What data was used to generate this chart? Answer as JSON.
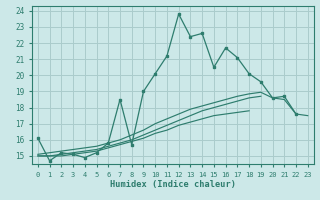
{
  "xlabel": "Humidex (Indice chaleur)",
  "x": [
    0,
    1,
    2,
    3,
    4,
    5,
    6,
    7,
    8,
    9,
    10,
    11,
    12,
    13,
    14,
    15,
    16,
    17,
    18,
    19,
    20,
    21,
    22,
    23
  ],
  "y_main": [
    16.1,
    14.7,
    15.2,
    15.1,
    14.9,
    15.2,
    15.8,
    18.5,
    15.7,
    19.0,
    20.1,
    21.2,
    23.8,
    22.4,
    22.6,
    20.5,
    21.7,
    21.1,
    20.1,
    19.6,
    18.6,
    18.7,
    17.6,
    null
  ],
  "y_line2": [
    15.1,
    15.2,
    15.3,
    15.4,
    15.5,
    15.6,
    15.8,
    16.0,
    16.3,
    16.6,
    17.0,
    17.3,
    17.6,
    17.9,
    18.1,
    18.3,
    18.5,
    18.7,
    18.85,
    18.95,
    18.6,
    18.5,
    17.6,
    17.5
  ],
  "y_line3": [
    15.0,
    15.0,
    15.1,
    15.2,
    15.3,
    15.4,
    15.6,
    15.8,
    16.0,
    16.3,
    16.6,
    16.9,
    17.2,
    17.5,
    17.8,
    18.0,
    18.2,
    18.4,
    18.6,
    18.7,
    null,
    null,
    null,
    null
  ],
  "y_line4": [
    15.0,
    15.0,
    15.0,
    15.1,
    15.2,
    15.3,
    15.5,
    15.7,
    15.9,
    16.1,
    16.4,
    16.6,
    16.9,
    17.1,
    17.3,
    17.5,
    17.6,
    17.7,
    17.8,
    null,
    null,
    null,
    null,
    null
  ],
  "color": "#2e7d6e",
  "bg_color": "#cce8e8",
  "grid_color": "#aacccc",
  "ylim": [
    14.5,
    24.3
  ],
  "xlim": [
    -0.5,
    23.5
  ],
  "yticks": [
    15,
    16,
    17,
    18,
    19,
    20,
    21,
    22,
    23,
    24
  ],
  "xticks": [
    0,
    1,
    2,
    3,
    4,
    5,
    6,
    7,
    8,
    9,
    10,
    11,
    12,
    13,
    14,
    15,
    16,
    17,
    18,
    19,
    20,
    21,
    22,
    23
  ]
}
